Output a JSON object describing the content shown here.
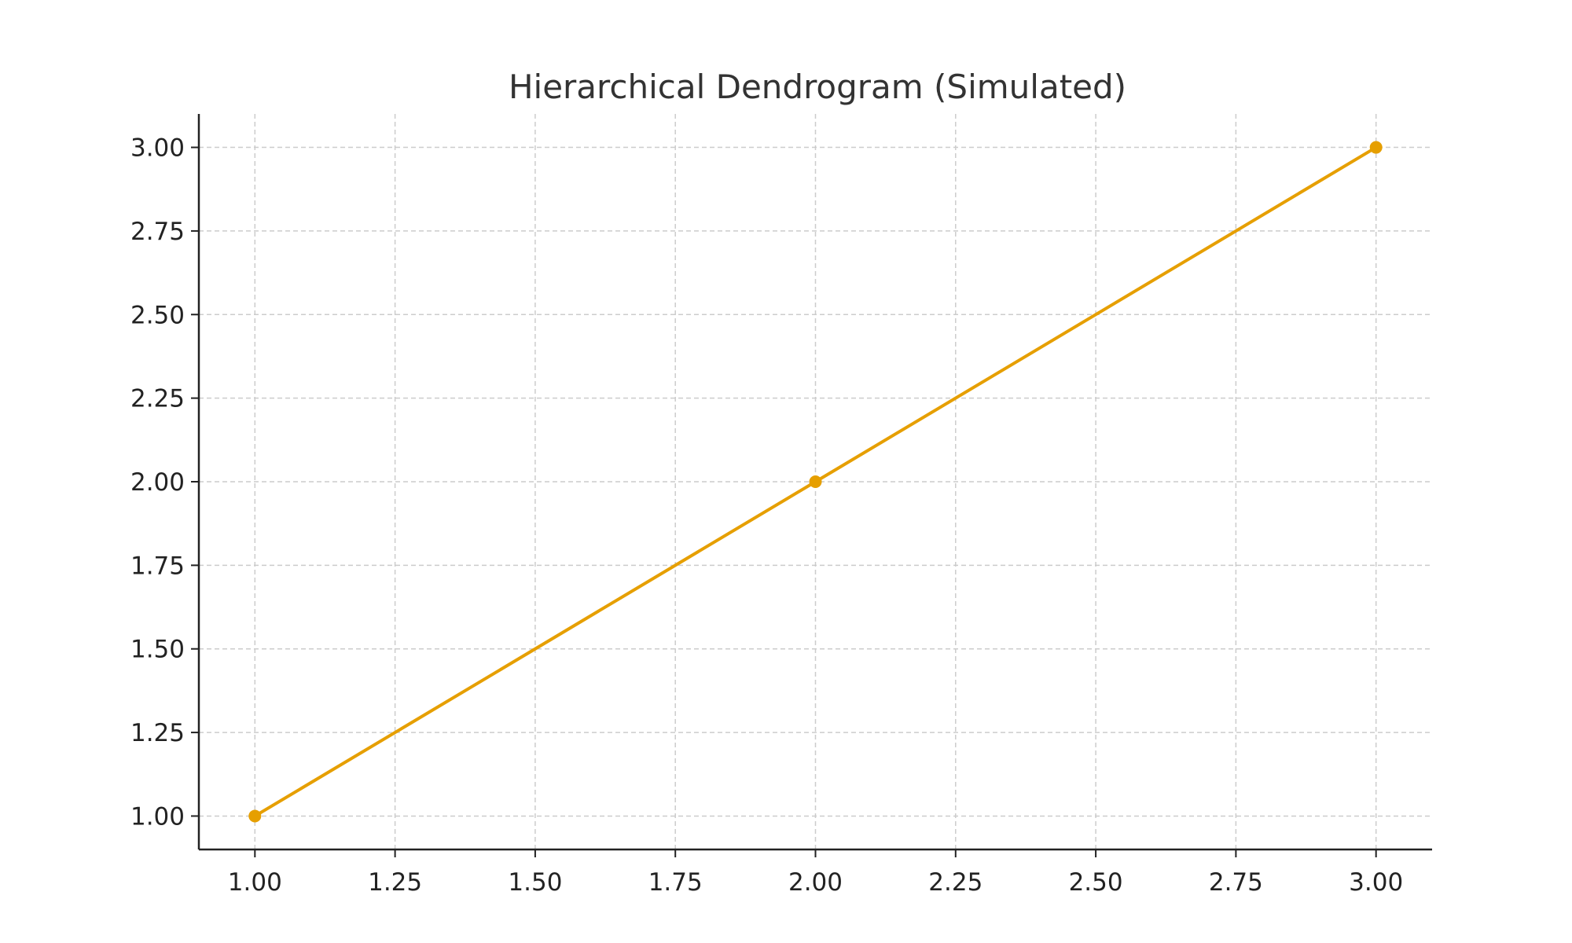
{
  "chart_data": {
    "type": "line",
    "title": "Hierarchical Dendrogram (Simulated)",
    "xlabel": "",
    "ylabel": "",
    "x": [
      1,
      2,
      3
    ],
    "series": [
      {
        "values": [
          1,
          2,
          3
        ],
        "color": "#E69F00",
        "marker": "circle"
      }
    ],
    "xlim": [
      0.9,
      3.1
    ],
    "ylim": [
      0.9,
      3.1
    ],
    "xticks": [
      "1.00",
      "1.25",
      "1.50",
      "1.75",
      "2.00",
      "2.25",
      "2.50",
      "2.75",
      "3.00"
    ],
    "yticks": [
      "1.00",
      "1.25",
      "1.50",
      "1.75",
      "2.00",
      "2.25",
      "2.50",
      "2.75",
      "3.00"
    ],
    "grid": true,
    "grid_style": "dashed",
    "grid_color": "#cccccc",
    "axis_color": "#222222"
  }
}
